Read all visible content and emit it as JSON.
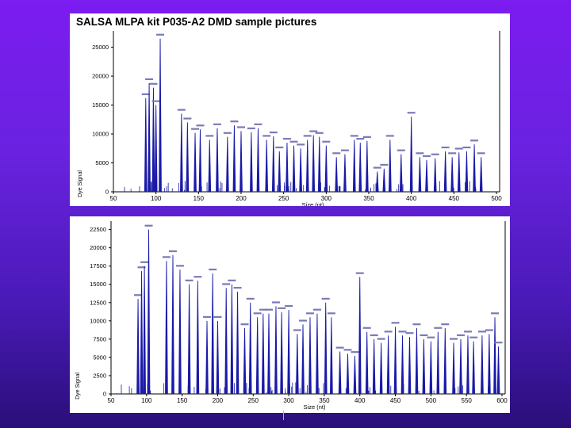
{
  "slide": {
    "title": "SALSA MLPA kit P035-A2 DMD sample pictures"
  },
  "colors": {
    "background_top": "#7b1cf0",
    "background_bottom": "#2a0f7a",
    "trace": "#1a1aa8",
    "panel": "#ffffff"
  },
  "chart_data": [
    {
      "type": "line",
      "title": "SALSA MLPA kit P035-A2 DMD sample pictures",
      "xlabel": "Size (nt)",
      "ylabel": "Dye Signal",
      "xlim": [
        50,
        500
      ],
      "ylim": [
        0,
        27000
      ],
      "xticks": [
        50,
        100,
        150,
        200,
        250,
        300,
        350,
        400,
        450,
        500
      ],
      "yticks": [
        0,
        5000,
        10000,
        15000,
        20000,
        25000
      ],
      "ytick_labels": [
        "0",
        "5000",
        "10000",
        "15000",
        "20000",
        "25000"
      ],
      "grid": false,
      "peaks": [
        {
          "x": 88,
          "y": 16200
        },
        {
          "x": 92,
          "y": 18800
        },
        {
          "x": 97,
          "y": 18000
        },
        {
          "x": 100,
          "y": 15000
        },
        {
          "x": 105,
          "y": 26500
        },
        {
          "x": 130,
          "y": 13500
        },
        {
          "x": 137,
          "y": 12000
        },
        {
          "x": 146,
          "y": 10200
        },
        {
          "x": 152,
          "y": 10800
        },
        {
          "x": 163,
          "y": 9000
        },
        {
          "x": 172,
          "y": 11000
        },
        {
          "x": 184,
          "y": 9500
        },
        {
          "x": 192,
          "y": 11500
        },
        {
          "x": 200,
          "y": 10500
        },
        {
          "x": 212,
          "y": 10300
        },
        {
          "x": 220,
          "y": 11000
        },
        {
          "x": 230,
          "y": 9000
        },
        {
          "x": 238,
          "y": 9600
        },
        {
          "x": 245,
          "y": 7000
        },
        {
          "x": 254,
          "y": 8500
        },
        {
          "x": 262,
          "y": 8000
        },
        {
          "x": 270,
          "y": 7500
        },
        {
          "x": 278,
          "y": 9000
        },
        {
          "x": 285,
          "y": 9800
        },
        {
          "x": 292,
          "y": 9500
        },
        {
          "x": 300,
          "y": 8000
        },
        {
          "x": 312,
          "y": 6000
        },
        {
          "x": 322,
          "y": 6500
        },
        {
          "x": 333,
          "y": 9000
        },
        {
          "x": 340,
          "y": 8500
        },
        {
          "x": 348,
          "y": 8800
        },
        {
          "x": 360,
          "y": 3500
        },
        {
          "x": 368,
          "y": 4000
        },
        {
          "x": 375,
          "y": 9000
        },
        {
          "x": 388,
          "y": 6500
        },
        {
          "x": 400,
          "y": 13000
        },
        {
          "x": 410,
          "y": 6000
        },
        {
          "x": 418,
          "y": 5500
        },
        {
          "x": 428,
          "y": 5800
        },
        {
          "x": 440,
          "y": 7000
        },
        {
          "x": 448,
          "y": 6000
        },
        {
          "x": 456,
          "y": 6800
        },
        {
          "x": 465,
          "y": 7000
        },
        {
          "x": 474,
          "y": 8200
        },
        {
          "x": 482,
          "y": 6000
        }
      ]
    },
    {
      "type": "line",
      "title": "",
      "xlabel": "Size (nt)",
      "ylabel": "Dye Signal",
      "xlim": [
        50,
        600
      ],
      "ylim": [
        0,
        23000
      ],
      "xticks": [
        50,
        100,
        150,
        200,
        250,
        300,
        350,
        400,
        450,
        500,
        550,
        600
      ],
      "yticks": [
        0,
        2500,
        5000,
        7500,
        10000,
        12500,
        15000,
        17500,
        20000,
        22500
      ],
      "ytick_labels": [
        "0",
        "2500",
        "5000",
        "7500",
        "10000",
        "12500",
        "15000",
        "17500",
        "20000",
        "22500"
      ],
      "grid": false,
      "peaks": [
        {
          "x": 88,
          "y": 13000
        },
        {
          "x": 93,
          "y": 16800
        },
        {
          "x": 97,
          "y": 17500
        },
        {
          "x": 103,
          "y": 22500
        },
        {
          "x": 128,
          "y": 18200
        },
        {
          "x": 137,
          "y": 19000
        },
        {
          "x": 147,
          "y": 17000
        },
        {
          "x": 160,
          "y": 15000
        },
        {
          "x": 172,
          "y": 15500
        },
        {
          "x": 185,
          "y": 10000
        },
        {
          "x": 193,
          "y": 16500
        },
        {
          "x": 200,
          "y": 10000
        },
        {
          "x": 212,
          "y": 14500
        },
        {
          "x": 220,
          "y": 15000
        },
        {
          "x": 228,
          "y": 14000
        },
        {
          "x": 238,
          "y": 9000
        },
        {
          "x": 246,
          "y": 12500
        },
        {
          "x": 256,
          "y": 10500
        },
        {
          "x": 264,
          "y": 11000
        },
        {
          "x": 272,
          "y": 11000
        },
        {
          "x": 282,
          "y": 12000
        },
        {
          "x": 290,
          "y": 11200
        },
        {
          "x": 300,
          "y": 11500
        },
        {
          "x": 312,
          "y": 8200
        },
        {
          "x": 320,
          "y": 9500
        },
        {
          "x": 330,
          "y": 10500
        },
        {
          "x": 340,
          "y": 11000
        },
        {
          "x": 352,
          "y": 12500
        },
        {
          "x": 360,
          "y": 10500
        },
        {
          "x": 372,
          "y": 5800
        },
        {
          "x": 383,
          "y": 5500
        },
        {
          "x": 393,
          "y": 5200
        },
        {
          "x": 400,
          "y": 16000
        },
        {
          "x": 410,
          "y": 8500
        },
        {
          "x": 420,
          "y": 7500
        },
        {
          "x": 430,
          "y": 7000
        },
        {
          "x": 440,
          "y": 8000
        },
        {
          "x": 450,
          "y": 9200
        },
        {
          "x": 460,
          "y": 8000
        },
        {
          "x": 470,
          "y": 7800
        },
        {
          "x": 480,
          "y": 9000
        },
        {
          "x": 490,
          "y": 7500
        },
        {
          "x": 500,
          "y": 7200
        },
        {
          "x": 510,
          "y": 8500
        },
        {
          "x": 520,
          "y": 9000
        },
        {
          "x": 532,
          "y": 7000
        },
        {
          "x": 542,
          "y": 7500
        },
        {
          "x": 552,
          "y": 8000
        },
        {
          "x": 560,
          "y": 7200
        },
        {
          "x": 572,
          "y": 8000
        },
        {
          "x": 582,
          "y": 8200
        },
        {
          "x": 590,
          "y": 10500
        },
        {
          "x": 595,
          "y": 6500
        }
      ]
    }
  ]
}
